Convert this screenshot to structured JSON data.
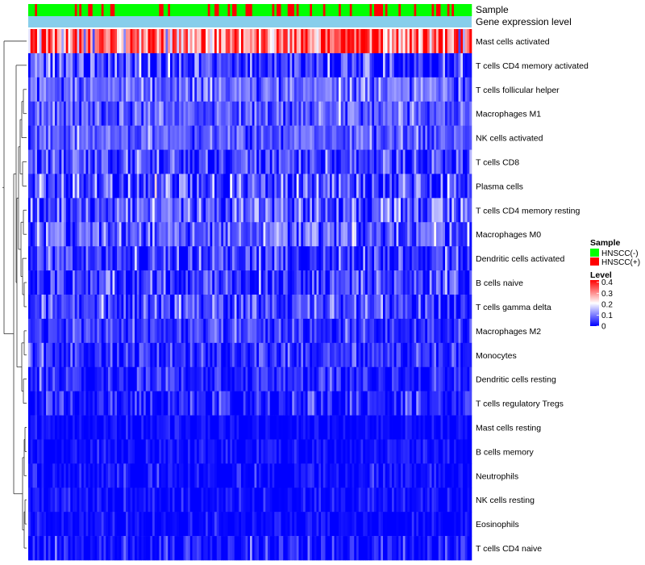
{
  "chart_data": {
    "type": "heatmap",
    "rows": [
      {
        "name": "Mast cells activated",
        "mean": 0.32,
        "spread": 0.1
      },
      {
        "name": "T cells CD4 memory activated",
        "mean": 0.04,
        "spread": 0.07
      },
      {
        "name": "T cells follicular helper",
        "mean": 0.08,
        "spread": 0.04
      },
      {
        "name": "Macrophages M1",
        "mean": 0.07,
        "spread": 0.04
      },
      {
        "name": "NK cells activated",
        "mean": 0.07,
        "spread": 0.04
      },
      {
        "name": "T cells CD8",
        "mean": 0.05,
        "spread": 0.05
      },
      {
        "name": "Plasma cells",
        "mean": 0.06,
        "spread": 0.07
      },
      {
        "name": "T cells CD4 memory resting",
        "mean": 0.07,
        "spread": 0.06
      },
      {
        "name": "Macrophages M0",
        "mean": 0.08,
        "spread": 0.06
      },
      {
        "name": "Dendritic cells activated",
        "mean": 0.04,
        "spread": 0.05
      },
      {
        "name": "B cells naive",
        "mean": 0.05,
        "spread": 0.05
      },
      {
        "name": "T cells gamma delta",
        "mean": 0.05,
        "spread": 0.05
      },
      {
        "name": "Macrophages M2",
        "mean": 0.04,
        "spread": 0.04
      },
      {
        "name": "Monocytes",
        "mean": 0.03,
        "spread": 0.04
      },
      {
        "name": "Dendritic cells resting",
        "mean": 0.02,
        "spread": 0.04
      },
      {
        "name": "T cells regulatory  Tregs",
        "mean": 0.02,
        "spread": 0.05
      },
      {
        "name": "Mast cells resting",
        "mean": 0.003,
        "spread": 0.02
      },
      {
        "name": "B cells memory",
        "mean": 0.005,
        "spread": 0.025
      },
      {
        "name": "Neutrophils",
        "mean": 0.005,
        "spread": 0.03
      },
      {
        "name": "NK cells resting",
        "mean": 0.004,
        "spread": 0.025
      },
      {
        "name": "Eosinophils",
        "mean": 0.003,
        "spread": 0.02
      },
      {
        "name": "T cells CD4 naive",
        "mean": 0.005,
        "spread": 0.04
      }
    ],
    "n_samples": 200,
    "annotations": [
      "Sample",
      "Gene expression level"
    ],
    "sample_groups": [
      "HNSCC(-)",
      "HNSCC(+)"
    ],
    "sample_group_fraction_positive": 0.25,
    "gene_expression_level_color": "#87ceeb",
    "legend": {
      "sample_title": "Sample",
      "sample_items": [
        {
          "label": "HNSCC(-)",
          "color": "#00ff00"
        },
        {
          "label": "HNSCC(+)",
          "color": "#ff0000"
        }
      ],
      "level_title": "Level",
      "level_ticks": [
        "0.4",
        "0.3",
        "0.2",
        "0.1",
        "0"
      ],
      "level_tick_values": [
        0.4,
        0.3,
        0.2,
        0.1,
        0
      ],
      "level_range": [
        0,
        0.42
      ]
    },
    "colorscale": [
      "#0000ff",
      "#ffffff",
      "#ff0000"
    ],
    "colorscale_mid": 0.21,
    "row_dendrogram": true,
    "column_dendrogram": false
  }
}
